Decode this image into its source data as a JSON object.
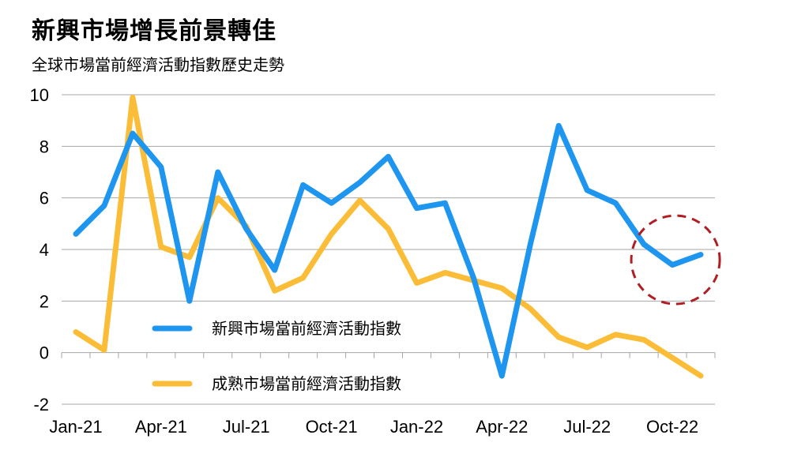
{
  "title": "新興市場增長前景轉佳",
  "subtitle": "全球市場當前經濟活動指數歷史走勢",
  "colors": {
    "emerging": "#1e96f0",
    "developed": "#fbbd37",
    "highlight": "#b01e23",
    "grid": "#a6a6a6"
  },
  "chart_data": {
    "type": "line",
    "x": [
      "Jan-21",
      "Feb-21",
      "Mar-21",
      "Apr-21",
      "May-21",
      "Jun-21",
      "Jul-21",
      "Aug-21",
      "Sep-21",
      "Oct-21",
      "Nov-21",
      "Dec-21",
      "Jan-22",
      "Feb-22",
      "Mar-22",
      "Apr-22",
      "May-22",
      "Jun-22",
      "Jul-22",
      "Aug-22",
      "Sep-22",
      "Oct-22",
      "Nov-22"
    ],
    "x_tick_labels": [
      "Jan-21",
      "Apr-21",
      "Jul-21",
      "Oct-21",
      "Jan-22",
      "Apr-22",
      "Jul-22",
      "Oct-22"
    ],
    "y_ticks": [
      "10",
      "8",
      "6",
      "4",
      "2",
      "0",
      "-2"
    ],
    "ylim": [
      -2,
      10
    ],
    "grid": true,
    "legend_position": "bottom-left",
    "series": [
      {
        "name": "新興市場當前經濟活動指數",
        "values": [
          4.6,
          5.7,
          8.5,
          7.2,
          2.0,
          7.0,
          4.8,
          3.2,
          6.5,
          5.8,
          6.6,
          7.6,
          5.6,
          5.8,
          2.9,
          -0.9,
          4.2,
          8.8,
          6.3,
          5.8,
          4.2,
          3.4,
          3.8
        ]
      },
      {
        "name": "成熟市場當前經濟活動指數",
        "values": [
          0.8,
          0.1,
          9.9,
          4.1,
          3.7,
          6.0,
          4.9,
          2.4,
          2.9,
          4.6,
          5.9,
          4.8,
          2.7,
          3.1,
          2.8,
          2.5,
          1.7,
          0.6,
          0.2,
          0.7,
          0.5,
          -0.2,
          -0.9
        ]
      }
    ],
    "annotation": "dashed circle highlighting the latest emerging-market readings (Sep-22 to Nov-22)"
  }
}
